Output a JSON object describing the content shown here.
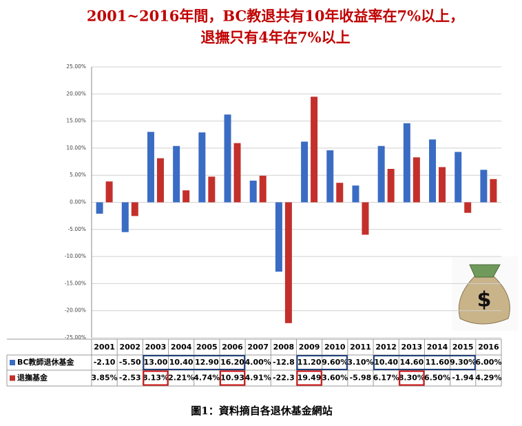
{
  "chart_data": {
    "type": "bar",
    "title_lines": [
      "2001~2016年間，BC教退共有10年收益率在7%以上，",
      "退撫只有4年在7%以上"
    ],
    "caption": "圖1：資料摘自各退休基金網站",
    "categories": [
      "2001",
      "2002",
      "2003",
      "2004",
      "2005",
      "2006",
      "2007",
      "2008",
      "2009",
      "2010",
      "2011",
      "2012",
      "2013",
      "2014",
      "2015",
      "2016"
    ],
    "series": [
      {
        "name": "BC教師退休基金",
        "color": "#3b6cc4",
        "values": [
          -2.1,
          -5.5,
          13,
          10.4,
          12.9,
          16.2,
          4,
          -12.8,
          11.2,
          9.6,
          3.1,
          10.4,
          14.6,
          11.6,
          9.3,
          6
        ],
        "value_labels": [
          "-2.10",
          "-5.50",
          "13.00",
          "10.40",
          "12.90",
          "16.20",
          "4.00%",
          "-12.8",
          "11.20",
          "9.60%",
          "3.10%",
          "10.40",
          "14.60",
          "11.60",
          "9.30%",
          "6.00%"
        ]
      },
      {
        "name": "退撫基金",
        "color": "#c3302b",
        "values": [
          3.85,
          -2.53,
          8.13,
          2.21,
          4.74,
          10.93,
          4.91,
          -22.3,
          19.49,
          3.6,
          -5.98,
          6.17,
          8.3,
          6.5,
          -1.94,
          4.29
        ],
        "value_labels": [
          "3.85%",
          "-2.53",
          "8.13%",
          "2.21%",
          "4.74%",
          "10.93",
          "4.91%",
          "-22.3",
          "19.49",
          "3.60%",
          "-5.98",
          "6.17%",
          "8.30%",
          "6.50%",
          "-1.94",
          "4.29%"
        ]
      }
    ],
    "ylim": [
      -25,
      25
    ],
    "yticks": [
      {
        "value": -25,
        "label": "-25.00%"
      },
      {
        "value": -20,
        "label": "-20.00%"
      },
      {
        "value": -15,
        "label": "-15.00%"
      },
      {
        "value": -10,
        "label": "-10.00%"
      },
      {
        "value": -5,
        "label": "-5.00%"
      },
      {
        "value": 0,
        "label": "0.00%"
      },
      {
        "value": 5,
        "label": "5.00%"
      },
      {
        "value": 10,
        "label": "10.00%"
      },
      {
        "value": 15,
        "label": "15.00%"
      },
      {
        "value": 20,
        "label": "20.00%"
      },
      {
        "value": 25,
        "label": "25.00%"
      }
    ],
    "grid": true
  }
}
